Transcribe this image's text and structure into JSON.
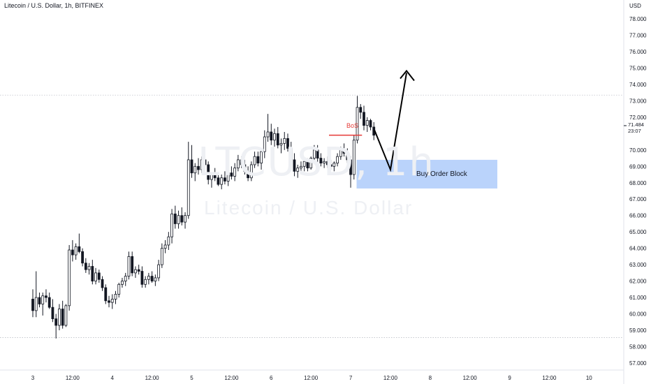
{
  "header": {
    "title": "Litecoin / U.S. Dollar, 1h, BITFINEX"
  },
  "watermark": {
    "symbol": "LTCUSD, 1h",
    "name": "Litecoin / U.S. Dollar"
  },
  "axis": {
    "currency": "USD"
  },
  "last_price": {
    "value": "71.484",
    "countdown": "23:07"
  },
  "annotations": {
    "order_block_label": "Buy Order Block",
    "bos_label": "BoS"
  },
  "colors": {
    "candle": "#131722",
    "bos_line": "#e53935",
    "order_block": "#aecbfa",
    "arrow": "#000000",
    "gridline": "#b2b5be"
  },
  "chart_data": {
    "type": "candlestick",
    "title": "Litecoin / U.S. Dollar, 1h, BITFINEX",
    "ylim": [
      56.5,
      79
    ],
    "y_ticks": [
      "57.000",
      "58.000",
      "59.000",
      "60.000",
      "61.000",
      "62.000",
      "63.000",
      "64.000",
      "65.000",
      "66.000",
      "67.000",
      "68.000",
      "69.000",
      "70.000",
      "72.000",
      "73.000",
      "74.000",
      "75.000",
      "76.000",
      "77.000",
      "78.000"
    ],
    "x_ticks": [
      {
        "label": "3",
        "bar": 0
      },
      {
        "label": "12:00",
        "bar": 12
      },
      {
        "label": "4",
        "bar": 24
      },
      {
        "label": "12:00",
        "bar": 36
      },
      {
        "label": "5",
        "bar": 48
      },
      {
        "label": "12:00",
        "bar": 60
      },
      {
        "label": "6",
        "bar": 72
      },
      {
        "label": "12:00",
        "bar": 84
      },
      {
        "label": "7",
        "bar": 96
      },
      {
        "label": "12:00",
        "bar": 108
      },
      {
        "label": "8",
        "bar": 120
      },
      {
        "label": "12:00",
        "bar": 132
      },
      {
        "label": "9",
        "bar": 144
      },
      {
        "label": "12:00",
        "bar": 156
      },
      {
        "label": "10",
        "bar": 168
      }
    ],
    "candles_ohlc": [
      [
        60.9,
        61.5,
        59.8,
        60.2
      ],
      [
        60.2,
        62.6,
        59.8,
        61.0
      ],
      [
        61.0,
        61.3,
        60.4,
        60.6
      ],
      [
        60.6,
        61.3,
        59.9,
        61.1
      ],
      [
        61.1,
        61.5,
        60.7,
        61.0
      ],
      [
        61.0,
        61.3,
        60.3,
        60.4
      ],
      [
        60.4,
        60.9,
        59.5,
        59.7
      ],
      [
        59.7,
        60.0,
        58.5,
        59.3
      ],
      [
        59.3,
        60.6,
        59.0,
        60.3
      ],
      [
        60.3,
        60.8,
        59.1,
        59.3
      ],
      [
        59.3,
        60.6,
        59.2,
        60.5
      ],
      [
        60.5,
        64.2,
        60.2,
        63.9
      ],
      [
        63.9,
        64.5,
        63.2,
        63.6
      ],
      [
        63.6,
        64.3,
        63.3,
        64.1
      ],
      [
        64.1,
        64.9,
        63.7,
        63.8
      ],
      [
        63.8,
        64.0,
        62.9,
        63.1
      ],
      [
        63.1,
        63.4,
        62.5,
        62.7
      ],
      [
        62.7,
        63.1,
        62.4,
        62.9
      ],
      [
        62.9,
        63.3,
        61.8,
        62.0
      ],
      [
        62.0,
        62.8,
        61.8,
        62.5
      ],
      [
        62.5,
        62.7,
        61.9,
        62.1
      ],
      [
        62.1,
        62.3,
        61.4,
        61.6
      ],
      [
        61.6,
        61.8,
        60.6,
        60.8
      ],
      [
        60.8,
        61.1,
        60.4,
        60.7
      ],
      [
        60.7,
        61.2,
        60.3,
        60.9
      ],
      [
        60.9,
        61.4,
        60.6,
        61.2
      ],
      [
        61.2,
        61.9,
        61.0,
        61.8
      ],
      [
        61.8,
        62.2,
        61.6,
        62.0
      ],
      [
        62.0,
        62.5,
        61.7,
        62.3
      ],
      [
        62.3,
        63.8,
        62.1,
        63.5
      ],
      [
        63.5,
        63.8,
        62.3,
        62.5
      ],
      [
        62.5,
        62.9,
        62.2,
        62.7
      ],
      [
        62.7,
        63.0,
        62.4,
        62.6
      ],
      [
        62.6,
        62.9,
        61.6,
        61.8
      ],
      [
        61.8,
        62.3,
        61.6,
        62.1
      ],
      [
        62.1,
        62.5,
        61.8,
        62.3
      ],
      [
        62.3,
        62.6,
        61.9,
        62.0
      ],
      [
        62.0,
        62.4,
        61.7,
        62.2
      ],
      [
        62.2,
        63.3,
        62.0,
        63.0
      ],
      [
        63.0,
        64.3,
        62.8,
        64.0
      ],
      [
        64.0,
        64.5,
        63.7,
        64.2
      ],
      [
        64.2,
        65.0,
        63.9,
        64.7
      ],
      [
        64.7,
        66.4,
        64.3,
        66.1
      ],
      [
        66.1,
        66.6,
        65.2,
        65.5
      ],
      [
        65.5,
        66.3,
        65.2,
        66.0
      ],
      [
        66.0,
        66.5,
        65.4,
        65.6
      ],
      [
        65.6,
        66.2,
        65.2,
        66.0
      ],
      [
        66.0,
        70.5,
        65.8,
        69.4
      ],
      [
        69.4,
        70.3,
        68.3,
        68.6
      ],
      [
        68.6,
        69.2,
        68.1,
        69.0
      ],
      [
        69.0,
        69.5,
        68.5,
        68.8
      ],
      [
        68.8,
        69.6,
        68.6,
        69.4
      ],
      [
        69.4,
        69.8,
        68.9,
        69.1
      ],
      [
        69.1,
        69.3,
        67.9,
        68.2
      ],
      [
        68.2,
        68.6,
        67.7,
        68.5
      ],
      [
        68.5,
        68.9,
        68.1,
        68.3
      ],
      [
        68.3,
        68.6,
        67.8,
        67.9
      ],
      [
        67.9,
        68.5,
        67.6,
        68.3
      ],
      [
        68.3,
        68.7,
        67.9,
        68.1
      ],
      [
        68.1,
        68.8,
        67.8,
        68.6
      ],
      [
        68.6,
        69.0,
        68.2,
        68.4
      ],
      [
        68.4,
        69.2,
        68.1,
        68.9
      ],
      [
        68.9,
        69.7,
        68.7,
        69.4
      ],
      [
        69.4,
        69.6,
        68.9,
        69.1
      ],
      [
        69.1,
        69.4,
        68.5,
        68.7
      ],
      [
        68.7,
        69.0,
        68.1,
        68.3
      ],
      [
        68.3,
        69.3,
        68.1,
        69.1
      ],
      [
        69.1,
        69.9,
        68.9,
        69.6
      ],
      [
        69.6,
        69.9,
        69.0,
        69.2
      ],
      [
        69.2,
        70.1,
        68.8,
        69.9
      ],
      [
        69.9,
        71.2,
        69.5,
        70.8
      ],
      [
        70.8,
        72.2,
        70.5,
        71.1
      ],
      [
        71.1,
        71.6,
        70.3,
        70.6
      ],
      [
        70.6,
        71.3,
        70.2,
        71.0
      ],
      [
        71.0,
        71.4,
        70.1,
        70.3
      ],
      [
        70.3,
        70.7,
        69.8,
        70.4
      ],
      [
        70.4,
        71.1,
        70.0,
        70.7
      ],
      [
        70.7,
        71.0,
        69.9,
        70.1
      ],
      [
        70.1,
        70.5,
        69.2,
        69.4
      ],
      [
        69.4,
        69.8,
        68.4,
        68.7
      ],
      [
        68.7,
        69.1,
        68.3,
        68.9
      ],
      [
        68.9,
        69.3,
        68.6,
        69.0
      ],
      [
        69.0,
        69.5,
        68.7,
        69.3
      ],
      [
        69.3,
        69.5,
        68.7,
        68.9
      ],
      [
        68.9,
        69.6,
        68.8,
        69.5
      ],
      [
        69.5,
        70.3,
        69.3,
        70.0
      ],
      [
        70.0,
        70.3,
        69.2,
        69.5
      ],
      [
        69.5,
        69.8,
        69.0,
        69.2
      ],
      [
        69.2,
        69.5,
        68.9,
        69.3
      ],
      [
        69.3,
        69.6,
        68.9,
        69.1
      ],
      [
        69.1,
        69.4,
        68.8,
        69.0
      ],
      [
        69.0,
        69.3,
        68.7,
        69.2
      ],
      [
        69.2,
        69.8,
        69.0,
        69.6
      ],
      [
        69.6,
        70.2,
        69.4,
        70.0
      ],
      [
        70.0,
        70.4,
        69.6,
        69.8
      ],
      [
        69.8,
        70.1,
        69.2,
        69.4
      ],
      [
        69.4,
        69.6,
        67.7,
        68.5
      ],
      [
        68.5,
        70.9,
        68.2,
        70.6
      ],
      [
        70.6,
        73.3,
        70.4,
        72.6
      ],
      [
        72.6,
        72.8,
        71.9,
        72.3
      ],
      [
        72.3,
        72.7,
        71.2,
        71.5
      ],
      [
        71.5,
        72.0,
        71.1,
        71.8
      ],
      [
        71.8,
        71.9,
        71.2,
        71.4
      ],
      [
        71.4,
        71.7,
        70.6,
        70.9
      ]
    ]
  }
}
